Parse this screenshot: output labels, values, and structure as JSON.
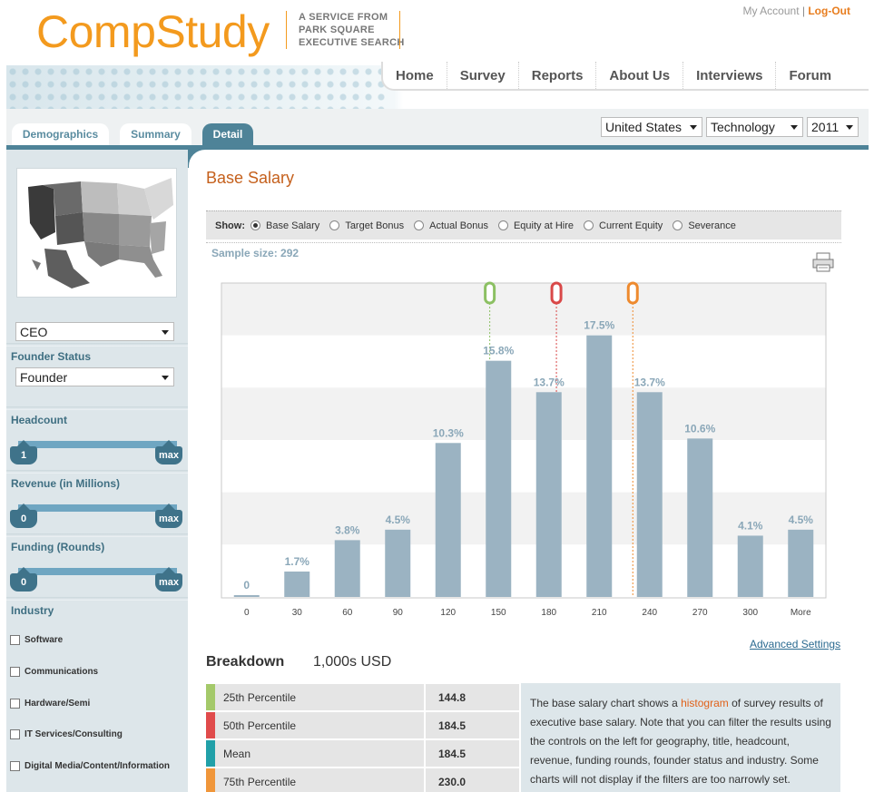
{
  "header": {
    "logo": "CompStudy",
    "tagline": [
      "A SERVICE FROM",
      "PARK SQUARE",
      "EXECUTIVE SEARCH"
    ],
    "my_account": "My Account",
    "separator": "|",
    "logout": "Log-Out"
  },
  "nav": [
    "Home",
    "Survey",
    "Reports",
    "About Us",
    "Interviews",
    "Forum"
  ],
  "tabs": {
    "demographics": "Demographics",
    "summary": "Summary",
    "detail": "Detail",
    "active": "Detail"
  },
  "filters": {
    "country": "United States",
    "sector": "Technology",
    "year": "2011"
  },
  "sidebar": {
    "title_select": "CEO",
    "founder_status_label": "Founder Status",
    "founder_status_value": "Founder",
    "headcount": {
      "label": "Headcount",
      "min": "1",
      "max": "max"
    },
    "revenue": {
      "label": "Revenue (in Millions)",
      "min": "0",
      "max": "max"
    },
    "funding": {
      "label": "Funding (Rounds)",
      "min": "0",
      "max": "max"
    },
    "industry_label": "Industry",
    "industries": [
      "Software",
      "Communications",
      "Hardware/Semi",
      "IT Services/Consulting",
      "Digital Media/Content/Information"
    ]
  },
  "main": {
    "title": "Base Salary",
    "show_label": "Show:",
    "show_options": [
      "Base Salary",
      "Target Bonus",
      "Actual Bonus",
      "Equity at Hire",
      "Current Equity",
      "Severance"
    ],
    "show_selected": "Base Salary",
    "sample_size": "Sample size: 292",
    "advanced_settings": "Advanced Settings",
    "breakdown_title": "Breakdown",
    "breakdown_unit": "1,000s USD",
    "breakdown": [
      {
        "name": "25th Percentile",
        "value": "144.8",
        "color": "#a4c96a"
      },
      {
        "name": "50th Percentile",
        "value": "184.5",
        "color": "#e04b4b"
      },
      {
        "name": "Mean",
        "value": "184.5",
        "color": "#21a0a8"
      },
      {
        "name": "75th Percentile",
        "value": "230.0",
        "color": "#f0963a"
      }
    ],
    "note": {
      "before": "The base salary chart shows a ",
      "link": "histogram",
      "after": " of survey results of executive base salary. Note that you can filter the results using the controls on the left for geography, title, headcount, revenue, funding rounds, founder status and industry. Some charts will not display if the filters are too narrowly set."
    }
  },
  "chart_data": {
    "type": "bar",
    "categories": [
      "0",
      "30",
      "60",
      "90",
      "120",
      "150",
      "180",
      "210",
      "240",
      "270",
      "300",
      "More"
    ],
    "values": [
      0,
      1.7,
      3.8,
      4.5,
      10.3,
      15.8,
      13.7,
      17.5,
      13.7,
      10.6,
      4.1,
      4.5
    ],
    "labels": [
      "0",
      "1.7%",
      "3.8%",
      "4.5%",
      "10.3%",
      "15.8%",
      "13.7%",
      "17.5%",
      "13.7%",
      "10.6%",
      "4.1%",
      "4.5%"
    ],
    "ylim": [
      0,
      21
    ],
    "markers": [
      {
        "name": "25th Percentile",
        "value": 144.8,
        "color": "#8cc063"
      },
      {
        "name": "50th Percentile",
        "value": 184.5,
        "color": "#d94848"
      },
      {
        "name": "75th Percentile",
        "value": 230.0,
        "color": "#ee8a2e"
      }
    ],
    "bar_color": "#9bb3c2",
    "label_color": "#8aa7b8",
    "grid": "alternating bands"
  }
}
